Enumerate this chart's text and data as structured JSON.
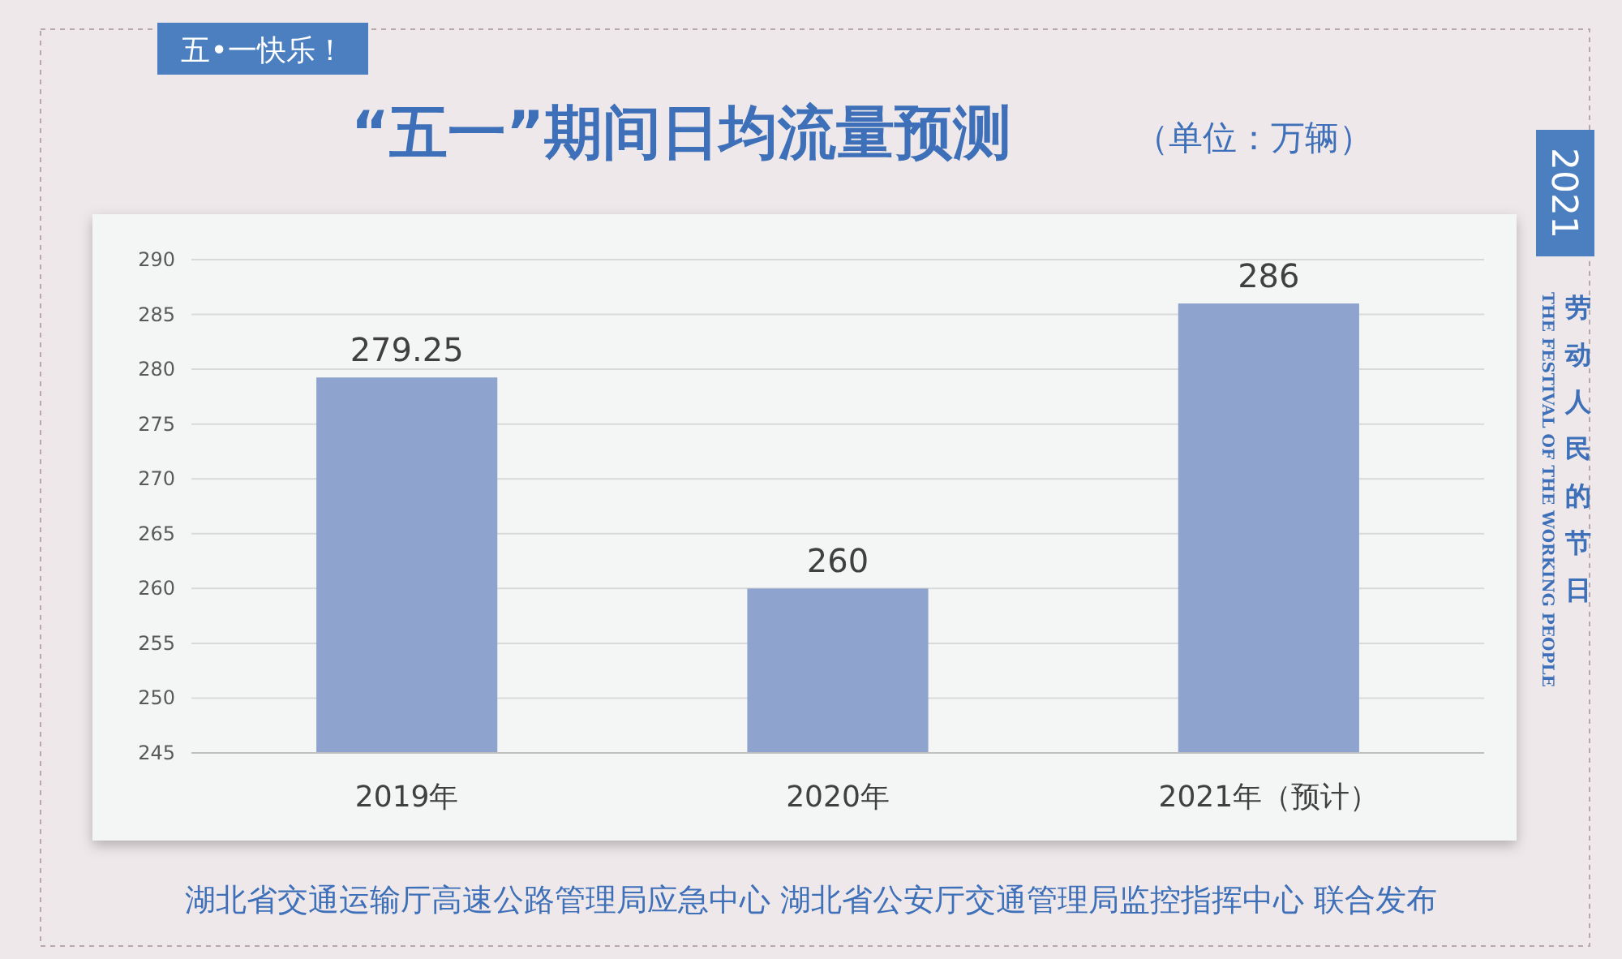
{
  "chart_data": {
    "type": "bar",
    "title": "“五一”期间日均流量预测",
    "subtitle": "（单位：万辆）",
    "categories": [
      "2019年",
      "2020年",
      "2021年（预计）"
    ],
    "values": [
      279.25,
      260,
      286
    ],
    "color": "#8fa3cf",
    "ylim": [
      245,
      290
    ],
    "yticks": [
      245,
      250,
      255,
      260,
      265,
      270,
      275,
      280,
      285,
      290
    ],
    "grid": "y",
    "data_labels": true,
    "annotations": [
      "五•一快乐！",
      "2021",
      "劳动人民的节日",
      "THE FESTIVAL OF THE WORKING PEOPLE",
      "湖北省交通运输厅高速公路管理局应急中心 湖北省公安厅交通管理局监控指挥中心 联合发布"
    ]
  }
}
